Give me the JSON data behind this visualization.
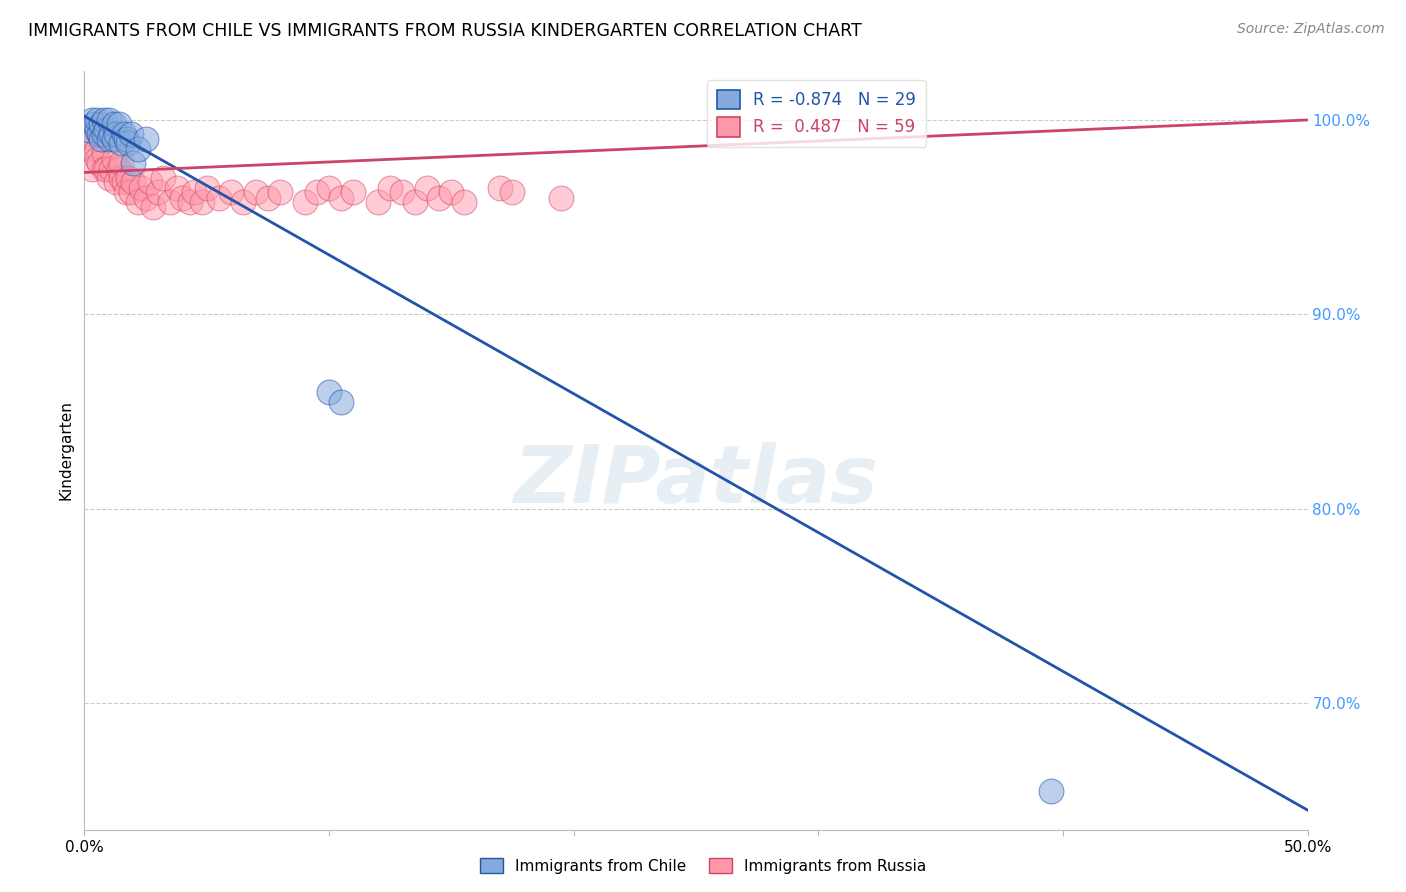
{
  "title": "IMMIGRANTS FROM CHILE VS IMMIGRANTS FROM RUSSIA KINDERGARTEN CORRELATION CHART",
  "source": "Source: ZipAtlas.com",
  "ylabel": "Kindergarten",
  "xlim": [
    0.0,
    0.5
  ],
  "ylim": [
    0.635,
    1.025
  ],
  "legend_r_chile": "-0.874",
  "legend_n_chile": "29",
  "legend_r_russia": "0.487",
  "legend_n_russia": "59",
  "chile_color": "#85AADD",
  "russia_color": "#FF99AA",
  "trendline_chile_color": "#2255AA",
  "trendline_russia_color": "#CC4466",
  "watermark": "ZIPatlas",
  "chile_x": [
    0.002,
    0.003,
    0.004,
    0.005,
    0.005,
    0.006,
    0.007,
    0.007,
    0.008,
    0.008,
    0.009,
    0.01,
    0.01,
    0.011,
    0.012,
    0.012,
    0.013,
    0.014,
    0.015,
    0.016,
    0.017,
    0.018,
    0.019,
    0.02,
    0.022,
    0.025,
    0.1,
    0.105,
    0.395
  ],
  "chile_y": [
    0.995,
    1.0,
    0.998,
    0.995,
    1.0,
    0.993,
    0.99,
    0.998,
    0.993,
    1.0,
    0.995,
    0.99,
    1.0,
    0.993,
    0.99,
    0.998,
    0.993,
    0.998,
    0.988,
    0.993,
    0.99,
    0.988,
    0.993,
    0.978,
    0.985,
    0.99,
    0.86,
    0.855,
    0.655
  ],
  "russia_x": [
    0.002,
    0.003,
    0.003,
    0.004,
    0.005,
    0.005,
    0.006,
    0.007,
    0.008,
    0.008,
    0.009,
    0.01,
    0.011,
    0.012,
    0.013,
    0.014,
    0.015,
    0.015,
    0.016,
    0.017,
    0.018,
    0.019,
    0.02,
    0.022,
    0.023,
    0.025,
    0.027,
    0.028,
    0.03,
    0.032,
    0.035,
    0.038,
    0.04,
    0.043,
    0.045,
    0.048,
    0.05,
    0.055,
    0.06,
    0.065,
    0.07,
    0.075,
    0.08,
    0.09,
    0.095,
    0.1,
    0.105,
    0.11,
    0.12,
    0.125,
    0.13,
    0.135,
    0.14,
    0.145,
    0.15,
    0.155,
    0.17,
    0.175,
    0.195
  ],
  "russia_y": [
    0.985,
    0.975,
    0.993,
    0.99,
    0.985,
    0.98,
    0.978,
    0.993,
    0.983,
    0.975,
    0.975,
    0.97,
    0.975,
    0.98,
    0.968,
    0.975,
    0.97,
    0.978,
    0.968,
    0.963,
    0.97,
    0.963,
    0.968,
    0.958,
    0.965,
    0.96,
    0.968,
    0.955,
    0.963,
    0.97,
    0.958,
    0.965,
    0.96,
    0.958,
    0.963,
    0.958,
    0.965,
    0.96,
    0.963,
    0.958,
    0.963,
    0.96,
    0.963,
    0.958,
    0.963,
    0.965,
    0.96,
    0.963,
    0.958,
    0.965,
    0.963,
    0.958,
    0.965,
    0.96,
    0.963,
    0.958,
    0.965,
    0.963,
    0.96
  ],
  "chile_trendline_x": [
    0.0,
    0.5
  ],
  "chile_trendline_y": [
    1.002,
    0.645
  ],
  "russia_trendline_x": [
    0.0,
    0.5
  ],
  "russia_trendline_y": [
    0.973,
    1.0
  ]
}
